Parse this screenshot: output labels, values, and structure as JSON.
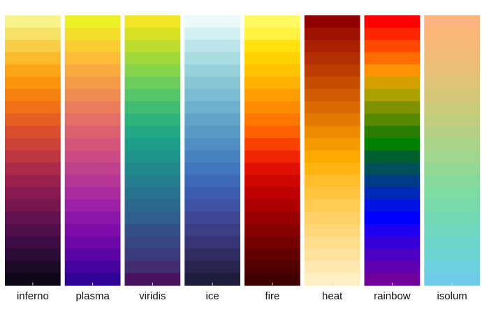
{
  "chart_data": {
    "type": "heatmap",
    "title": "",
    "xlabel": "",
    "ylabel": "",
    "grid": false,
    "legend": "none",
    "palettes": [
      {
        "name": "inferno",
        "colors": [
          "#f7f58a",
          "#f6e266",
          "#f9cd45",
          "#fbba2c",
          "#fca617",
          "#fb930b",
          "#f7810e",
          "#f06f17",
          "#e65e22",
          "#da4e2d",
          "#cc4237",
          "#bc3541",
          "#ab2a48",
          "#9a214c",
          "#881a4f",
          "#75164f",
          "#62124e",
          "#500f4a",
          "#3e0c44",
          "#2c0b36",
          "#1c0a27",
          "#0e0717"
        ]
      },
      {
        "name": "plasma",
        "colors": [
          "#ebf125",
          "#f4de2c",
          "#f9cd32",
          "#fcbc38",
          "#f9ab3d",
          "#f49b47",
          "#ee8c52",
          "#e97d5c",
          "#e36e65",
          "#dc6170",
          "#d5557a",
          "#cc4a83",
          "#c1408b",
          "#b63595",
          "#a92b9e",
          "#9b20a5",
          "#8d16aa",
          "#7e0ca9",
          "#6d08a8",
          "#5b04a5",
          "#4703a0",
          "#2f0495"
        ]
      },
      {
        "name": "viridis",
        "colors": [
          "#f2e626",
          "#d7e123",
          "#bcdd2d",
          "#a0d93a",
          "#85d44a",
          "#6ccd5a",
          "#55c667",
          "#40bd73",
          "#2eb37c",
          "#22a884",
          "#1e9e88",
          "#1f948b",
          "#21898d",
          "#247e8e",
          "#27738e",
          "#2b688d",
          "#2f5e8c",
          "#334f88",
          "#374584",
          "#3b3a7e",
          "#412c70",
          "#47115e"
        ]
      },
      {
        "name": "ice",
        "colors": [
          "#eaf9f9",
          "#d1f0f1",
          "#bbe5ea",
          "#a6dce2",
          "#96d1dc",
          "#88c6d6",
          "#7abcd2",
          "#6db0cd",
          "#61a4c9",
          "#5899c6",
          "#4f8dc3",
          "#4881c0",
          "#4175bd",
          "#3d69b7",
          "#3c5daf",
          "#3d52a3",
          "#3d4795",
          "#3b3d85",
          "#373475",
          "#302c62",
          "#282450",
          "#1e1c3c"
        ]
      },
      {
        "name": "fire",
        "colors": [
          "#fff962",
          "#fff23e",
          "#ffe20b",
          "#ffd300",
          "#ffc300",
          "#ffb100",
          "#ff9e00",
          "#ff8b00",
          "#ff7700",
          "#ff6000",
          "#fa4200",
          "#f02400",
          "#e10f00",
          "#cf0500",
          "#bd0000",
          "#ab0000",
          "#990000",
          "#860000",
          "#740000",
          "#620000",
          "#510000",
          "#400000"
        ]
      },
      {
        "name": "heat",
        "colors": [
          "#900000",
          "#9c1100",
          "#a72000",
          "#b32e00",
          "#bd3d00",
          "#c64c00",
          "#d05a00",
          "#da6a00",
          "#e37900",
          "#ec8a00",
          "#f59a00",
          "#fdaa00",
          "#ffb412",
          "#ffbc2b",
          "#ffc33e",
          "#ffca52",
          "#ffd065",
          "#ffd778",
          "#ffdd8a",
          "#ffe39d",
          "#ffe9b0",
          "#fff0c4"
        ]
      },
      {
        "name": "rainbow",
        "colors": [
          "#ff0000",
          "#ff2400",
          "#ff4800",
          "#ff6d00",
          "#ff9200",
          "#d4a000",
          "#aaa000",
          "#7f9000",
          "#558800",
          "#2a7c00",
          "#008000",
          "#00602d",
          "#004f5b",
          "#003b88",
          "#002ab5",
          "#0013e2",
          "#0000ff",
          "#1d00f0",
          "#3500d8",
          "#4b00c2",
          "#5d00ae",
          "#6f0099"
        ]
      },
      {
        "name": "isolum",
        "colors": [
          "#feb47e",
          "#fbb67b",
          "#f5b979",
          "#efbd77",
          "#e7c076",
          "#dfc476",
          "#d6c778",
          "#cccb7a",
          "#c1ce7e",
          "#b6d083",
          "#abd388",
          "#9fd68e",
          "#93d894",
          "#87d99b",
          "#7fdaa3",
          "#78daab",
          "#73d9b5",
          "#6fd8bf",
          "#6dd6c9",
          "#6cd3d3",
          "#6dd0de",
          "#6fcce9"
        ]
      }
    ]
  }
}
